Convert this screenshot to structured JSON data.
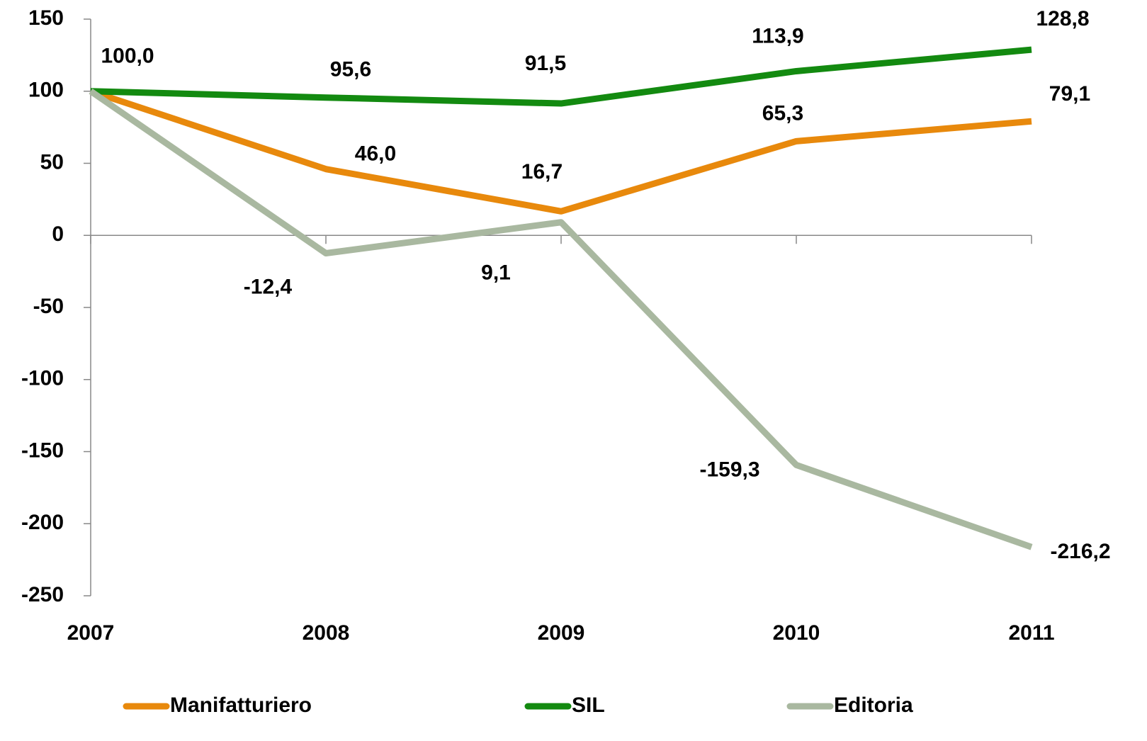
{
  "chart_data": {
    "type": "line",
    "categories": [
      "2007",
      "2008",
      "2009",
      "2010",
      "2011"
    ],
    "series": [
      {
        "name": "Manifatturiero",
        "color": "#e8890c",
        "values": [
          100,
          46,
          16.7,
          65.3,
          79.1
        ],
        "value_labels": [
          null,
          "46,0",
          "16,7",
          "65,3",
          "79,1"
        ]
      },
      {
        "name": "SIL",
        "color": "#138a10",
        "values": [
          100,
          95.6,
          91.5,
          113.9,
          128.8
        ],
        "value_labels": [
          "100,0",
          "95,6",
          "91,5",
          "113,9",
          "128,8"
        ]
      },
      {
        "name": "Editoria",
        "color": "#a9b8a0",
        "values": [
          100,
          -12.4,
          9.1,
          -159.3,
          -216.2
        ],
        "value_labels": [
          null,
          "-12,4",
          "9,1",
          "-159,3",
          "-216,2"
        ]
      }
    ],
    "ylim": [
      -250,
      150
    ],
    "yticks": [
      -250,
      -200,
      -150,
      -100,
      -50,
      0,
      50,
      100,
      150
    ],
    "legend": "bottom"
  }
}
